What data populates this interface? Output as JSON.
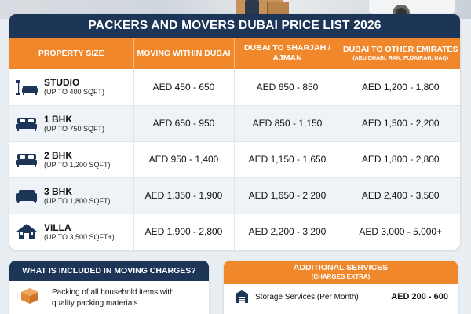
{
  "header": {
    "title": "PACKERS AND MOVERS DUBAI PRICE LIST 2026"
  },
  "columns": {
    "property": "PROPERTY SIZE",
    "within": "MOVING WITHIN DUBAI",
    "sharjah": "DUBAI TO SHARJAH / AJMAN",
    "other": "DUBAI TO OTHER EMIRATES",
    "other_sub": "(ABU DHABI, RAK, FUJAIRAH, UAQ)"
  },
  "rows": [
    {
      "name": "STUDIO",
      "size": "(UP TO 400 SQFT)",
      "icon": "studio-sofa-lamp-icon",
      "within": "AED 450 - 650",
      "sharjah": "AED 650 - 850",
      "other": "AED 1,200 - 1,800"
    },
    {
      "name": "1 BHK",
      "size": "(UP TO 750 SQFT)",
      "icon": "bed-icon",
      "within": "AED 650 - 950",
      "sharjah": "AED 850 - 1,150",
      "other": "AED 1,500 - 2,200"
    },
    {
      "name": "2 BHK",
      "size": "(UP TO 1,200 SQFT)",
      "icon": "bed-icon",
      "within": "AED 950 - 1,400",
      "sharjah": "AED 1,150 - 1,650",
      "other": "AED 1,800 - 2,800"
    },
    {
      "name": "3 BHK",
      "size": "(UP TO 1,800 SQFT)",
      "icon": "sofa-icon",
      "within": "AED 1,350 - 1,900",
      "sharjah": "AED 1,650 - 2,200",
      "other": "AED 2,400 - 3,500"
    },
    {
      "name": "VILLA",
      "size": "(UP TO 3,500 SQFT+)",
      "icon": "house-icon",
      "within": "AED 1,900 - 2,800",
      "sharjah": "AED 2,200 - 3,200",
      "other": "AED 3,000 - 5,000+"
    }
  ],
  "included": {
    "title": "WHAT IS INCLUDED IN MOVING CHARGES?",
    "items": [
      {
        "icon": "box-icon",
        "text": "Packing of all household items with quality packing materials"
      }
    ]
  },
  "services": {
    "title": "ADDITIONAL SERVICES",
    "subtitle": "(CHARGES EXTRA)",
    "items": [
      {
        "icon": "storage-icon",
        "name": "Storage Services (Per Month)",
        "price": "AED 200 - 600"
      }
    ]
  },
  "colors": {
    "navy": "#1d3557",
    "orange": "#f0872a",
    "row_alt": "#eef3f7"
  }
}
